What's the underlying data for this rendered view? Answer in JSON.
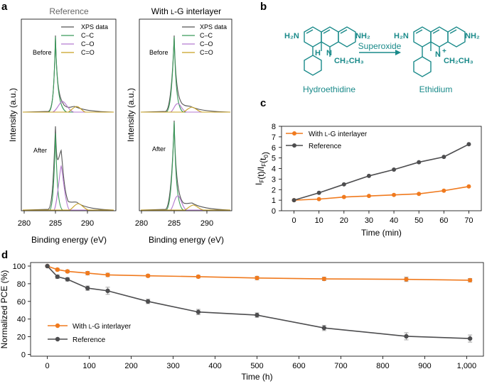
{
  "panels": {
    "a": "a",
    "b": "b",
    "c": "c",
    "d": "d"
  },
  "panel_a": {
    "left_title": "Reference",
    "right_title_prefix": "With ",
    "right_title_lg": "l",
    "right_title_suffix": "-G interlayer",
    "legend": [
      "XPS data",
      "C–C",
      "C–O",
      "C=O"
    ],
    "before_label": "Before",
    "after_label": "After",
    "ylabel": "Intensity (a.u.)",
    "xlabel": "Binding energy (eV)",
    "xticks": [
      "280",
      "285",
      "290"
    ]
  },
  "panel_b": {
    "left_name": "Hydroethidine",
    "right_name": "Ethidium",
    "arrow_label": "Superoxide",
    "nh2_left_a": "H₂N",
    "nh2_right_a": "NH₂",
    "nh2_left_b": "H₂N",
    "nh2_right_b": "NH₂",
    "h_label": "H",
    "n_label_a": "N",
    "n_label_b": "N",
    "plus": "+",
    "ethyl_a": "CH₂CH₃",
    "ethyl_b": "CH₂CH₃"
  },
  "colors": {
    "orange": "#F07A1E",
    "gray": "#4D4D4F",
    "teal": "#1A8A8A",
    "xps": "#555555",
    "cc": "#3A9A5A",
    "co": "#B57AD0",
    "c_eq_o": "#C8A020"
  },
  "chart_data": [
    {
      "id": "c",
      "type": "line",
      "xlabel": "Time (min)",
      "ylabel": "I_F(t)/I_F(t_0)",
      "x": [
        0,
        10,
        20,
        30,
        40,
        50,
        60,
        70
      ],
      "xticks": [
        "0",
        "10",
        "20",
        "30",
        "40",
        "50",
        "60",
        "70"
      ],
      "yticks": [
        "0",
        "1",
        "2",
        "3",
        "4",
        "5",
        "6",
        "7",
        "8"
      ],
      "xlim": [
        -5,
        75
      ],
      "ylim": [
        0,
        8
      ],
      "series": [
        {
          "name": "With l-G interlayer",
          "label_prefix": "With ",
          "label_lg": "l",
          "label_suffix": "-G interlayer",
          "color": "#F07A1E",
          "values": [
            1.0,
            1.1,
            1.3,
            1.4,
            1.5,
            1.6,
            1.9,
            2.3
          ]
        },
        {
          "name": "Reference",
          "color": "#4D4D4F",
          "values": [
            1.0,
            1.7,
            2.5,
            3.3,
            3.9,
            4.6,
            5.1,
            6.3
          ]
        }
      ]
    },
    {
      "id": "d",
      "type": "line",
      "xlabel": "Time (h)",
      "ylabel": "Normalized PCE (%)",
      "xlim": [
        -40,
        1040
      ],
      "ylim": [
        -2,
        104
      ],
      "xticks": [
        0,
        100,
        200,
        300,
        400,
        500,
        600,
        700,
        800,
        900,
        1000
      ],
      "xtick_labels": [
        "0",
        "100",
        "200",
        "300",
        "400",
        "500",
        "600",
        "700",
        "800",
        "900",
        "1,000"
      ],
      "yticks": [
        0,
        20,
        40,
        60,
        80,
        100
      ],
      "ytick_labels": [
        "0",
        "20",
        "40",
        "60",
        "80",
        "100"
      ],
      "series": [
        {
          "name": "With l-G interlayer",
          "label_prefix": "With ",
          "label_lg": "l",
          "label_suffix": "-G interlayer",
          "color": "#F07A1E",
          "x": [
            0,
            24,
            48,
            96,
            144,
            240,
            360,
            500,
            660,
            856,
            1008
          ],
          "values": [
            100,
            96,
            94,
            92,
            90,
            89,
            88,
            86.5,
            85.5,
            85,
            84
          ],
          "errors": [
            0,
            1.5,
            1.5,
            2,
            2,
            1.5,
            1.5,
            2,
            2,
            2.5,
            2
          ]
        },
        {
          "name": "Reference",
          "color": "#4D4D4F",
          "x": [
            0,
            24,
            48,
            96,
            144,
            240,
            360,
            500,
            660,
            856,
            1008
          ],
          "values": [
            100,
            88,
            85,
            75,
            72,
            60,
            48,
            44.5,
            30,
            20.5,
            18
          ],
          "errors": [
            0,
            2,
            2,
            2.5,
            4,
            2.5,
            3,
            2.5,
            3,
            4,
            4
          ]
        }
      ]
    }
  ]
}
